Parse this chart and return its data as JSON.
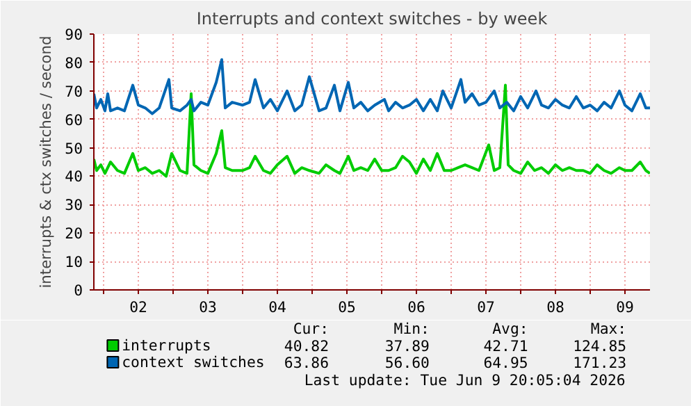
{
  "chart_data": {
    "type": "line",
    "title": "Interrupts and context switches - by week",
    "ylabel": "interrupts & ctx switches / second",
    "xlim": [
      1.86,
      9.86
    ],
    "ylim": [
      0,
      90
    ],
    "xticks": [
      {
        "value": 2,
        "label": null
      },
      {
        "value": 2.5,
        "label": "02"
      },
      {
        "value": 3,
        "label": null
      },
      {
        "value": 3.5,
        "label": "03"
      },
      {
        "value": 4,
        "label": null
      },
      {
        "value": 4.5,
        "label": "04"
      },
      {
        "value": 5,
        "label": null
      },
      {
        "value": 5.5,
        "label": "05"
      },
      {
        "value": 6,
        "label": null
      },
      {
        "value": 6.5,
        "label": "06"
      },
      {
        "value": 7,
        "label": null
      },
      {
        "value": 7.5,
        "label": "07"
      },
      {
        "value": 8,
        "label": null
      },
      {
        "value": 8.5,
        "label": "08"
      },
      {
        "value": 9,
        "label": null
      },
      {
        "value": 9.5,
        "label": "09"
      }
    ],
    "yticks": [
      0,
      10,
      20,
      30,
      40,
      50,
      60,
      70,
      80,
      90
    ],
    "grid": true,
    "legend": "bottom left",
    "marker": "none",
    "line_style": "solid",
    "series": [
      {
        "name": "interrupts",
        "color": "#00cc00",
        "x": [
          1.86,
          1.9,
          1.96,
          2.02,
          2.1,
          2.2,
          2.3,
          2.42,
          2.5,
          2.6,
          2.7,
          2.8,
          2.9,
          2.98,
          3.1,
          3.2,
          3.26,
          3.3,
          3.4,
          3.5,
          3.62,
          3.7,
          3.75,
          3.85,
          4.0,
          4.1,
          4.18,
          4.3,
          4.4,
          4.5,
          4.64,
          4.75,
          4.85,
          4.96,
          5.1,
          5.2,
          5.32,
          5.4,
          5.52,
          5.6,
          5.7,
          5.8,
          5.9,
          6.0,
          6.1,
          6.2,
          6.3,
          6.4,
          6.5,
          6.6,
          6.7,
          6.8,
          6.9,
          7.0,
          7.1,
          7.2,
          7.3,
          7.4,
          7.54,
          7.62,
          7.7,
          7.78,
          7.82,
          7.9,
          8.0,
          8.1,
          8.2,
          8.3,
          8.4,
          8.5,
          8.6,
          8.7,
          8.8,
          8.9,
          9.0,
          9.1,
          9.2,
          9.3,
          9.42,
          9.5,
          9.6,
          9.72,
          9.8,
          9.86
        ],
        "values": [
          46,
          42,
          44,
          41,
          45,
          42,
          41,
          48,
          42,
          43,
          41,
          42,
          40,
          48,
          42,
          41,
          69,
          44,
          42,
          41,
          48,
          56,
          43,
          42,
          42,
          43,
          47,
          42,
          41,
          44,
          47,
          41,
          43,
          42,
          41,
          44,
          42,
          41,
          47,
          42,
          43,
          42,
          46,
          42,
          42,
          43,
          47,
          45,
          41,
          46,
          42,
          48,
          42,
          42,
          43,
          44,
          43,
          42,
          51,
          42,
          43,
          72,
          44,
          42,
          41,
          45,
          42,
          43,
          41,
          44,
          42,
          43,
          42,
          42,
          41,
          44,
          42,
          41,
          43,
          42,
          42,
          45,
          42,
          41
        ]
      },
      {
        "name": "context switches",
        "color": "#0066b3",
        "x": [
          1.86,
          1.9,
          1.96,
          2.02,
          2.06,
          2.1,
          2.2,
          2.3,
          2.42,
          2.5,
          2.6,
          2.7,
          2.8,
          2.94,
          2.98,
          3.1,
          3.2,
          3.26,
          3.3,
          3.4,
          3.5,
          3.62,
          3.7,
          3.75,
          3.85,
          4.0,
          4.1,
          4.18,
          4.3,
          4.4,
          4.5,
          4.64,
          4.75,
          4.85,
          4.96,
          5.1,
          5.2,
          5.32,
          5.4,
          5.52,
          5.6,
          5.7,
          5.8,
          5.9,
          6.04,
          6.1,
          6.2,
          6.3,
          6.4,
          6.5,
          6.6,
          6.7,
          6.8,
          6.88,
          7.0,
          7.14,
          7.2,
          7.3,
          7.4,
          7.5,
          7.62,
          7.7,
          7.8,
          7.9,
          8.0,
          8.1,
          8.22,
          8.3,
          8.4,
          8.5,
          8.6,
          8.7,
          8.8,
          8.9,
          9.0,
          9.1,
          9.2,
          9.3,
          9.42,
          9.5,
          9.6,
          9.72,
          9.8,
          9.86
        ],
        "values": [
          69,
          64,
          67,
          63,
          69,
          63,
          64,
          63,
          72,
          65,
          64,
          62,
          64,
          74,
          64,
          63,
          65,
          67,
          63,
          66,
          65,
          73,
          81,
          64,
          66,
          65,
          66,
          74,
          64,
          67,
          63,
          70,
          63,
          65,
          75,
          63,
          64,
          72,
          63,
          73,
          64,
          66,
          63,
          65,
          67,
          63,
          66,
          64,
          65,
          67,
          63,
          67,
          63,
          70,
          64,
          74,
          66,
          69,
          65,
          66,
          70,
          64,
          66,
          63,
          68,
          64,
          70,
          65,
          64,
          67,
          65,
          64,
          68,
          64,
          65,
          63,
          66,
          64,
          70,
          65,
          63,
          69,
          64,
          64
        ]
      }
    ],
    "annotations": [
      "Cur:",
      "Min:",
      "Avg:",
      "Max:",
      "40.82",
      "37.89",
      "42.71",
      "124.85",
      "63.86",
      "56.60",
      "64.95",
      "171.23",
      "Last update: Tue Jun  9 20:05:04 2026"
    ]
  }
}
